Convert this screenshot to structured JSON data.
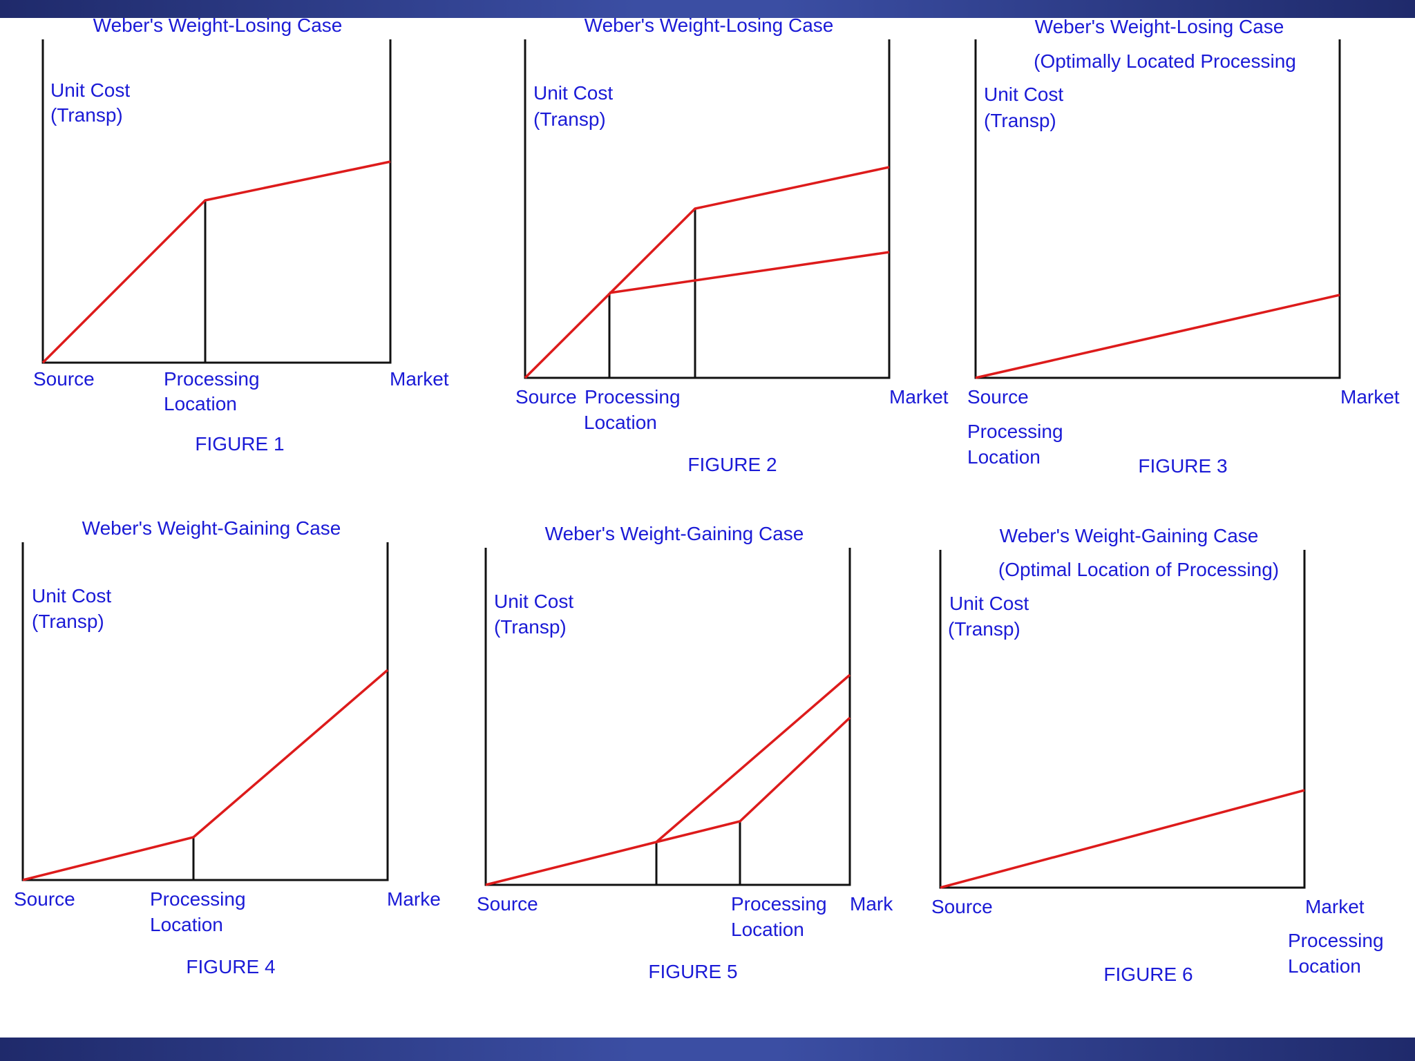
{
  "colors": {
    "text": "#1a1ad6",
    "curve": "#dd1b1b",
    "axis": "#111111",
    "frame": "#2a3a8c"
  },
  "figures": [
    {
      "title": "Weber's Weight-Losing Case",
      "subtitle": "",
      "ylabel": [
        "Unit Cost",
        "(Transp)"
      ],
      "source_label": "Source",
      "market_label": "Market",
      "processing_label": [
        "Processing",
        "Location"
      ],
      "caption": "FIGURE 1"
    },
    {
      "title": "Weber's Weight-Losing Case",
      "subtitle": "",
      "ylabel": [
        "Unit Cost",
        "(Transp)"
      ],
      "source_label": "Source",
      "market_label": "Market",
      "processing_label": [
        "Processing",
        "Location"
      ],
      "caption": "FIGURE 2"
    },
    {
      "title": "Weber's Weight-Losing Case",
      "subtitle": "(Optimally Located Processing",
      "ylabel": [
        "Unit Cost",
        "(Transp)"
      ],
      "source_label": "Source",
      "market_label": "Market",
      "processing_label": [
        "Processing",
        "Location"
      ],
      "caption": "FIGURE 3"
    },
    {
      "title": "Weber's Weight-Gaining Case",
      "subtitle": "",
      "ylabel": [
        "Unit Cost",
        "(Transp)"
      ],
      "source_label": "Source",
      "market_label": "Marke",
      "processing_label": [
        "Processing",
        "Location"
      ],
      "caption": "FIGURE 4"
    },
    {
      "title": "Weber's Weight-Gaining Case",
      "subtitle": "",
      "ylabel": [
        "Unit Cost",
        "(Transp)"
      ],
      "source_label": "Source",
      "market_label": "Mark",
      "processing_label": [
        "Processing",
        "Location"
      ],
      "caption": "FIGURE 5"
    },
    {
      "title": "Weber's Weight-Gaining Case",
      "subtitle": "(Optimal Location of Processing)",
      "ylabel": [
        "Unit Cost",
        "(Transp)"
      ],
      "source_label": "Source",
      "market_label": "Market",
      "processing_label": [
        "Processing",
        "Location"
      ],
      "caption": "FIGURE 6"
    }
  ]
}
